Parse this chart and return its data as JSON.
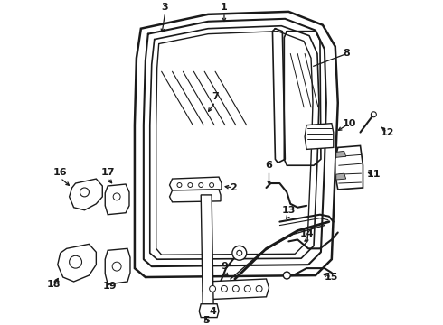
{
  "bg_color": "#ffffff",
  "line_color": "#1a1a1a",
  "fg": "#1a1a1a"
}
